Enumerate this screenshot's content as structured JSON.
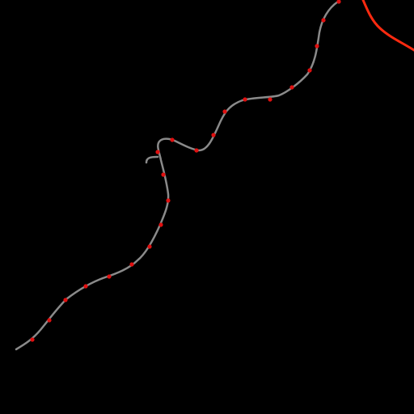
{
  "map": {
    "background_color": "#000000",
    "route_color": "#8a8a8a",
    "station_color": "#e01010",
    "highlight_route_color": "#ff2a10"
  }
}
